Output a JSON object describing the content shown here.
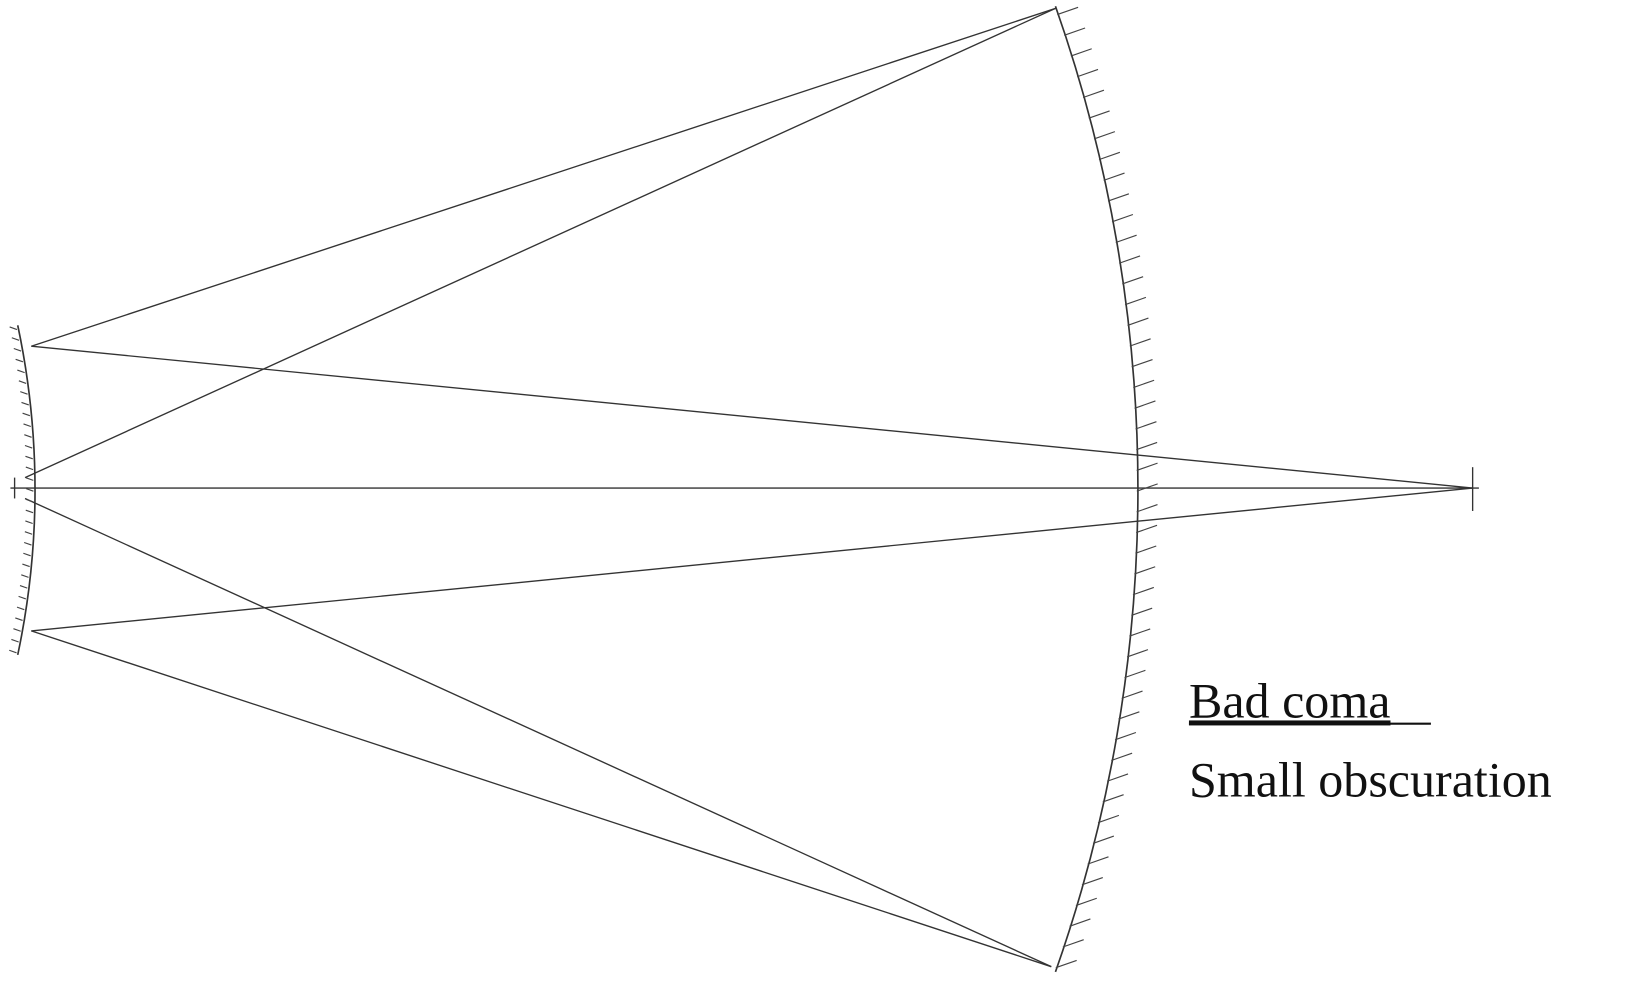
{
  "labels": {
    "title": "Bad coma",
    "subtitle": "Small obscuration"
  }
}
